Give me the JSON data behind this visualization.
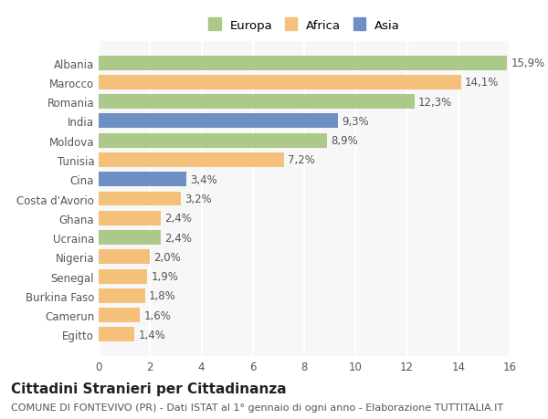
{
  "categories": [
    "Albania",
    "Marocco",
    "Romania",
    "India",
    "Moldova",
    "Tunisia",
    "Cina",
    "Costa d'Avorio",
    "Ghana",
    "Ucraina",
    "Nigeria",
    "Senegal",
    "Burkina Faso",
    "Camerun",
    "Egitto"
  ],
  "values": [
    15.9,
    14.1,
    12.3,
    9.3,
    8.9,
    7.2,
    3.4,
    3.2,
    2.4,
    2.4,
    2.0,
    1.9,
    1.8,
    1.6,
    1.4
  ],
  "labels": [
    "15,9%",
    "14,1%",
    "12,3%",
    "9,3%",
    "8,9%",
    "7,2%",
    "3,4%",
    "3,2%",
    "2,4%",
    "2,4%",
    "2,0%",
    "1,9%",
    "1,8%",
    "1,6%",
    "1,4%"
  ],
  "continent": [
    "Europa",
    "Africa",
    "Europa",
    "Asia",
    "Europa",
    "Africa",
    "Asia",
    "Africa",
    "Africa",
    "Europa",
    "Africa",
    "Africa",
    "Africa",
    "Africa",
    "Africa"
  ],
  "colors": {
    "Europa": "#adc98a",
    "Africa": "#f5c07a",
    "Asia": "#6e8fc4"
  },
  "title": "Cittadini Stranieri per Cittadinanza",
  "subtitle": "COMUNE DI FONTEVIVO (PR) - Dati ISTAT al 1° gennaio di ogni anno - Elaborazione TUTTITALIA.IT",
  "xlim": [
    0,
    16
  ],
  "xticks": [
    0,
    2,
    4,
    6,
    8,
    10,
    12,
    14,
    16
  ],
  "background_color": "#ffffff",
  "plot_bg_color": "#f7f7f7",
  "bar_height": 0.75,
  "grid_color": "#ffffff",
  "label_fontsize": 8.5,
  "tick_fontsize": 8.5,
  "ylabel_fontsize": 8.5,
  "title_fontsize": 11,
  "subtitle_fontsize": 8,
  "legend_fontsize": 9.5
}
